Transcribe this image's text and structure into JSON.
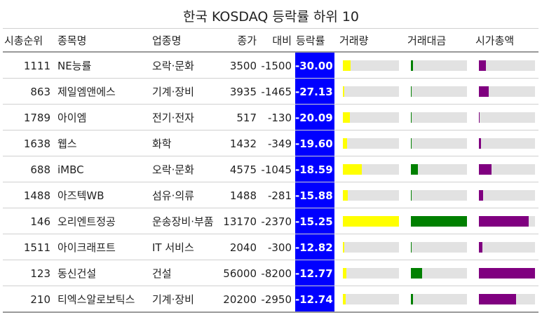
{
  "chart_data": {
    "type": "table",
    "title": "한국 KOSDAQ 등락률 하위 10",
    "columns": [
      "시총순위",
      "종목명",
      "업종명",
      "종가",
      "대비",
      "등락률",
      "거래량",
      "거래대금",
      "시가총액"
    ],
    "colors": {
      "rate_bg": "#0000ff",
      "volume": "#ffff00",
      "trade_value": "#008000",
      "market_cap": "#800080",
      "track": "#e2e2e2"
    },
    "rows": [
      {
        "rank": "1111",
        "name": "NE능률",
        "sector": "오락·문화",
        "close": "3500",
        "change": "-1500",
        "rate": "-30.00",
        "volume_frac": 0.14,
        "trade_value_frac": 0.04,
        "market_cap_frac": 0.12
      },
      {
        "rank": "863",
        "name": "제일엠앤에스",
        "sector": "기계·장비",
        "close": "3935",
        "change": "-1465",
        "rate": "-27.13",
        "volume_frac": 0.02,
        "trade_value_frac": 0.01,
        "market_cap_frac": 0.17
      },
      {
        "rank": "1789",
        "name": "아이엠",
        "sector": "전기·전자",
        "close": "517",
        "change": "-130",
        "rate": "-20.09",
        "volume_frac": 0.12,
        "trade_value_frac": 0.01,
        "market_cap_frac": 0.01
      },
      {
        "rank": "1638",
        "name": "웹스",
        "sector": "화학",
        "close": "1432",
        "change": "-349",
        "rate": "-19.60",
        "volume_frac": 0.07,
        "trade_value_frac": 0.01,
        "market_cap_frac": 0.04
      },
      {
        "rank": "688",
        "name": "iMBC",
        "sector": "오락·문화",
        "close": "4575",
        "change": "-1045",
        "rate": "-18.59",
        "volume_frac": 0.34,
        "trade_value_frac": 0.12,
        "market_cap_frac": 0.22
      },
      {
        "rank": "1488",
        "name": "아즈텍WB",
        "sector": "섬유·의류",
        "close": "1488",
        "change": "-281",
        "rate": "-15.88",
        "volume_frac": 0.09,
        "trade_value_frac": 0.01,
        "market_cap_frac": 0.07
      },
      {
        "rank": "146",
        "name": "오리엔트정공",
        "sector": "운송장비·부품",
        "close": "13170",
        "change": "-2370",
        "rate": "-15.25",
        "volume_frac": 1.0,
        "trade_value_frac": 1.0,
        "market_cap_frac": 0.89
      },
      {
        "rank": "1511",
        "name": "아이크래프트",
        "sector": "IT 서비스",
        "close": "2040",
        "change": "-300",
        "rate": "-12.82",
        "volume_frac": 0.03,
        "trade_value_frac": 0.01,
        "market_cap_frac": 0.06
      },
      {
        "rank": "123",
        "name": "동신건설",
        "sector": "건설",
        "close": "56000",
        "change": "-8200",
        "rate": "-12.77",
        "volume_frac": 0.06,
        "trade_value_frac": 0.2,
        "market_cap_frac": 1.0
      },
      {
        "rank": "210",
        "name": "티엑스알로보틱스",
        "sector": "기계·장비",
        "close": "20200",
        "change": "-2950",
        "rate": "-12.74",
        "volume_frac": 0.05,
        "trade_value_frac": 0.04,
        "market_cap_frac": 0.66
      }
    ]
  }
}
